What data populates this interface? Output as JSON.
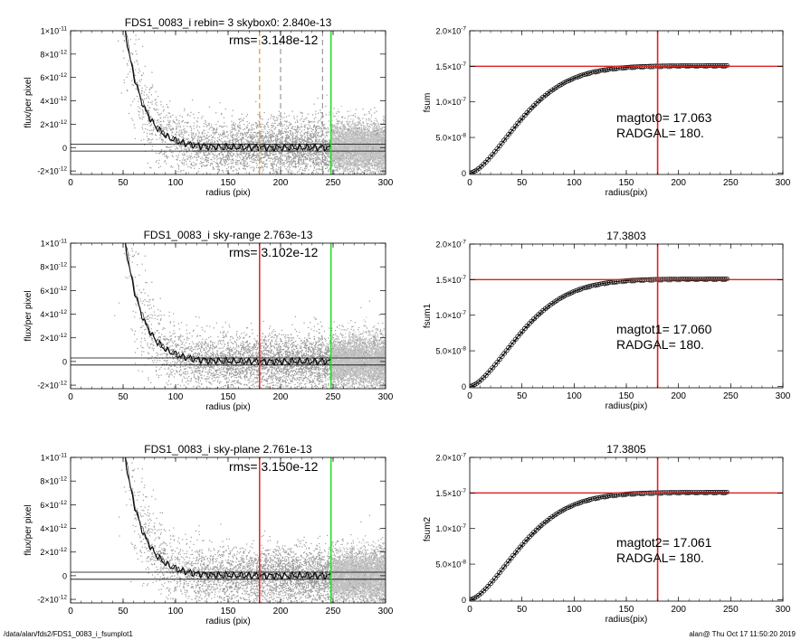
{
  "footer": {
    "path": "/data/alan/fds2/FDS1_0083_i_fsumplot1",
    "stamp": "alan@  Thu Oct 17 11:50:20 2019"
  },
  "chart_data": [
    {
      "type": "scatter",
      "title": "FDS1_0083_i rebin= 3    skybox0:  2.840e-13",
      "annotation": "rms= 3.148e-12",
      "xlabel": "radius (pix)",
      "ylabel": "flux/per pixel",
      "xlim": [
        0,
        300
      ],
      "ylim": [
        -2.3e-12,
        1e-11
      ],
      "xticks": [
        {
          "v": 0,
          "label": "0"
        },
        {
          "v": 50,
          "label": "50"
        },
        {
          "v": 100,
          "label": "100"
        },
        {
          "v": 150,
          "label": "150"
        },
        {
          "v": 200,
          "label": "200"
        },
        {
          "v": 250,
          "label": "250"
        },
        {
          "v": 300,
          "label": "300"
        }
      ],
      "yticks": [
        {
          "v": 1e-11,
          "base": "1×10",
          "exp": "-11"
        },
        {
          "v": 8e-12,
          "base": "8×10",
          "exp": "-12"
        },
        {
          "v": 6e-12,
          "base": "6×10",
          "exp": "-12"
        },
        {
          "v": 4e-12,
          "base": "4×10",
          "exp": "-12"
        },
        {
          "v": 2e-12,
          "base": "2×10",
          "exp": "-12"
        },
        {
          "v": 0,
          "base": "0",
          "exp": ""
        },
        {
          "v": -2e-12,
          "base": "-2×10",
          "exp": "-12"
        }
      ],
      "vlines": [
        {
          "x": 180,
          "color": "#e8922a",
          "dash": true
        },
        {
          "x": 200,
          "color": "#9a9a9a",
          "dash": true
        },
        {
          "x": 240,
          "color": "#9a9a9a",
          "dash": true
        },
        {
          "x": 248,
          "color": "#22dd22",
          "dash": false
        }
      ],
      "hlines": [
        3e-13,
        -3e-13
      ]
    },
    {
      "type": "line",
      "title": "",
      "annotation_lines": [
        "magtot0=  17.063",
        "RADGAL=     180."
      ],
      "xlabel": "radius(pix)",
      "ylabel": "fsum",
      "xlim": [
        0,
        300
      ],
      "ylim": [
        -2e-09,
        2e-07
      ],
      "xticks": [
        {
          "v": 0,
          "label": "0"
        },
        {
          "v": 50,
          "label": "50"
        },
        {
          "v": 100,
          "label": "100"
        },
        {
          "v": 150,
          "label": "150"
        },
        {
          "v": 200,
          "label": "200"
        },
        {
          "v": 250,
          "label": "250"
        },
        {
          "v": 300,
          "label": "300"
        }
      ],
      "yticks": [
        {
          "v": 2e-07,
          "base": "2.0×10",
          "exp": "-7"
        },
        {
          "v": 1.5e-07,
          "base": "1.5×10",
          "exp": "-7"
        },
        {
          "v": 1e-07,
          "base": "1.0×10",
          "exp": "-7"
        },
        {
          "v": 5e-08,
          "base": "5.0×10",
          "exp": "-8"
        },
        {
          "v": 0,
          "base": "0",
          "exp": ""
        }
      ],
      "vline": {
        "x": 180,
        "color": "#dd2222"
      },
      "hline": {
        "y": 1.5e-07,
        "color": "#dd2222"
      },
      "curve": {
        "x_max": 248,
        "asymptote": 1.51e-07
      },
      "series": [
        {
          "x": [
            0,
            25,
            50,
            75,
            100,
            125,
            150,
            175,
            200,
            225,
            248
          ],
          "y": [
            0,
            2.5e-08,
            7e-08,
            1.03e-07,
            1.25e-07,
            1.38e-07,
            1.45e-07,
            1.48e-07,
            1.5e-07,
            1.51e-07,
            1.51e-07
          ]
        }
      ]
    },
    {
      "type": "scatter",
      "title": "FDS1_0083_i sky-range  2.763e-13",
      "annotation": "rms= 3.102e-12",
      "xlabel": "radius (pix)",
      "ylabel": "flux/per pixel",
      "xlim": [
        0,
        300
      ],
      "ylim": [
        -2.3e-12,
        1e-11
      ],
      "xticks": [
        {
          "v": 0,
          "label": "0"
        },
        {
          "v": 50,
          "label": "50"
        },
        {
          "v": 100,
          "label": "100"
        },
        {
          "v": 150,
          "label": "150"
        },
        {
          "v": 200,
          "label": "200"
        },
        {
          "v": 250,
          "label": "250"
        },
        {
          "v": 300,
          "label": "300"
        }
      ],
      "yticks": [
        {
          "v": 1e-11,
          "base": "1×10",
          "exp": "-11"
        },
        {
          "v": 8e-12,
          "base": "8×10",
          "exp": "-12"
        },
        {
          "v": 6e-12,
          "base": "6×10",
          "exp": "-12"
        },
        {
          "v": 4e-12,
          "base": "4×10",
          "exp": "-12"
        },
        {
          "v": 2e-12,
          "base": "2×10",
          "exp": "-12"
        },
        {
          "v": 0,
          "base": "0",
          "exp": ""
        },
        {
          "v": -2e-12,
          "base": "-2×10",
          "exp": "-12"
        }
      ],
      "vlines": [
        {
          "x": 180,
          "color": "#dd2222",
          "dash": false
        },
        {
          "x": 248,
          "color": "#22dd22",
          "dash": false
        }
      ],
      "hlines": [
        3e-13,
        -3e-13
      ]
    },
    {
      "type": "line",
      "title": "17.3803",
      "annotation_lines": [
        "magtot1=  17.060",
        "RADGAL=     180."
      ],
      "xlabel": "radius(pix)",
      "ylabel": "fsum1",
      "xlim": [
        0,
        300
      ],
      "ylim": [
        -2e-09,
        2e-07
      ],
      "xticks": [
        {
          "v": 0,
          "label": "0"
        },
        {
          "v": 50,
          "label": "50"
        },
        {
          "v": 100,
          "label": "100"
        },
        {
          "v": 150,
          "label": "150"
        },
        {
          "v": 200,
          "label": "200"
        },
        {
          "v": 250,
          "label": "250"
        },
        {
          "v": 300,
          "label": "300"
        }
      ],
      "yticks": [
        {
          "v": 2e-07,
          "base": "2.0×10",
          "exp": "-7"
        },
        {
          "v": 1.5e-07,
          "base": "1.5×10",
          "exp": "-7"
        },
        {
          "v": 1e-07,
          "base": "1.0×10",
          "exp": "-7"
        },
        {
          "v": 5e-08,
          "base": "5.0×10",
          "exp": "-8"
        },
        {
          "v": 0,
          "base": "0",
          "exp": ""
        }
      ],
      "vline": {
        "x": 180,
        "color": "#dd2222"
      },
      "hline": {
        "y": 1.5e-07,
        "color": "#dd2222"
      },
      "curve": {
        "x_max": 248,
        "asymptote": 1.51e-07
      },
      "series": [
        {
          "x": [
            0,
            25,
            50,
            75,
            100,
            125,
            150,
            175,
            200,
            225,
            248
          ],
          "y": [
            0,
            2.5e-08,
            7e-08,
            1.03e-07,
            1.25e-07,
            1.38e-07,
            1.45e-07,
            1.48e-07,
            1.5e-07,
            1.51e-07,
            1.51e-07
          ]
        }
      ]
    },
    {
      "type": "scatter",
      "title": "FDS1_0083_i sky-plane  2.761e-13",
      "annotation": "rms= 3.150e-12",
      "xlabel": "radius (pix)",
      "ylabel": "flux/per pixel",
      "xlim": [
        0,
        300
      ],
      "ylim": [
        -2.3e-12,
        1e-11
      ],
      "xticks": [
        {
          "v": 0,
          "label": "0"
        },
        {
          "v": 50,
          "label": "50"
        },
        {
          "v": 100,
          "label": "100"
        },
        {
          "v": 150,
          "label": "150"
        },
        {
          "v": 200,
          "label": "200"
        },
        {
          "v": 250,
          "label": "250"
        },
        {
          "v": 300,
          "label": "300"
        }
      ],
      "yticks": [
        {
          "v": 1e-11,
          "base": "1×10",
          "exp": "-11"
        },
        {
          "v": 8e-12,
          "base": "8×10",
          "exp": "-12"
        },
        {
          "v": 6e-12,
          "base": "6×10",
          "exp": "-12"
        },
        {
          "v": 4e-12,
          "base": "4×10",
          "exp": "-12"
        },
        {
          "v": 2e-12,
          "base": "2×10",
          "exp": "-12"
        },
        {
          "v": 0,
          "base": "0",
          "exp": ""
        },
        {
          "v": -2e-12,
          "base": "-2×10",
          "exp": "-12"
        }
      ],
      "vlines": [
        {
          "x": 180,
          "color": "#dd2222",
          "dash": false
        },
        {
          "x": 248,
          "color": "#22dd22",
          "dash": false
        }
      ],
      "hlines": [
        3e-13,
        -3e-13
      ]
    },
    {
      "type": "line",
      "title": "17.3805",
      "annotation_lines": [
        "magtot2=  17.061",
        "RADGAL=     180."
      ],
      "xlabel": "radius(pix)",
      "ylabel": "fsum2",
      "xlim": [
        0,
        300
      ],
      "ylim": [
        -2e-09,
        2e-07
      ],
      "xticks": [
        {
          "v": 0,
          "label": "0"
        },
        {
          "v": 50,
          "label": "50"
        },
        {
          "v": 100,
          "label": "100"
        },
        {
          "v": 150,
          "label": "150"
        },
        {
          "v": 200,
          "label": "200"
        },
        {
          "v": 250,
          "label": "250"
        },
        {
          "v": 300,
          "label": "300"
        }
      ],
      "yticks": [
        {
          "v": 2e-07,
          "base": "2.0×10",
          "exp": "-7"
        },
        {
          "v": 1.5e-07,
          "base": "1.5×10",
          "exp": "-7"
        },
        {
          "v": 1e-07,
          "base": "1.0×10",
          "exp": "-7"
        },
        {
          "v": 5e-08,
          "base": "5.0×10",
          "exp": "-8"
        },
        {
          "v": 0,
          "base": "0",
          "exp": ""
        }
      ],
      "vline": {
        "x": 180,
        "color": "#dd2222"
      },
      "hline": {
        "y": 1.5e-07,
        "color": "#dd2222"
      },
      "curve": {
        "x_max": 248,
        "asymptote": 1.51e-07
      },
      "series": [
        {
          "x": [
            0,
            25,
            50,
            75,
            100,
            125,
            150,
            175,
            200,
            225,
            248
          ],
          "y": [
            0,
            2.5e-08,
            7e-08,
            1.03e-07,
            1.25e-07,
            1.38e-07,
            1.45e-07,
            1.48e-07,
            1.5e-07,
            1.51e-07,
            1.51e-07
          ]
        }
      ]
    }
  ]
}
